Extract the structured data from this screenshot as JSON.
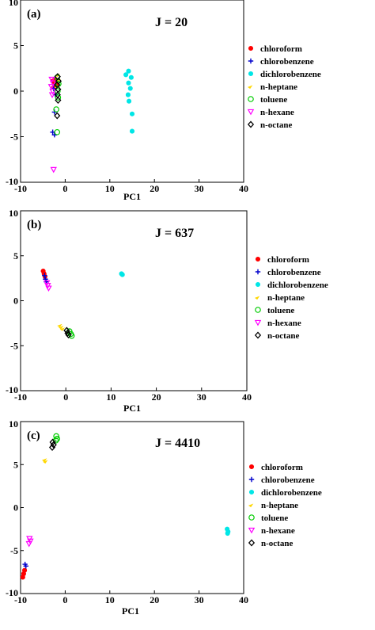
{
  "chart_data": [
    {
      "type": "scatter",
      "panel_label": "(a)",
      "annotation": "J = 20",
      "xlabel": "PC1",
      "ylabel": "",
      "xlim": [
        -10,
        40
      ],
      "ylim": [
        -10,
        10
      ],
      "xticks": [
        "-10",
        "0",
        "10",
        "20",
        "30",
        "40"
      ],
      "yticks": [
        "-10",
        "-5",
        "0",
        "5",
        "10"
      ],
      "legend_position": "right",
      "series": [
        {
          "name": "chloroform",
          "marker": "dot",
          "color": "#ff0000",
          "points": [
            [
              -2.3,
              1.3
            ],
            [
              -2.8,
              1.1
            ],
            [
              -2.5,
              0.9
            ],
            [
              -2.0,
              0.7
            ],
            [
              -2.6,
              0.4
            ]
          ]
        },
        {
          "name": "chlorobenzene",
          "marker": "plus",
          "color": "#0000cc",
          "points": [
            [
              -2.4,
              -2.3
            ],
            [
              -2.8,
              -4.5
            ],
            [
              -2.4,
              -4.8
            ],
            [
              -2.6,
              0.3
            ],
            [
              -2.2,
              -0.4
            ]
          ]
        },
        {
          "name": "dichlorobenzene",
          "marker": "dot",
          "color": "#00e6e6",
          "points": [
            [
              14.2,
              2.2
            ],
            [
              13.6,
              1.8
            ],
            [
              14.8,
              1.5
            ],
            [
              14.2,
              0.9
            ],
            [
              14.6,
              0.3
            ],
            [
              14.1,
              -0.4
            ],
            [
              14.3,
              -1.1
            ],
            [
              15.0,
              -2.5
            ],
            [
              15.0,
              -4.4
            ]
          ]
        },
        {
          "name": "n-heptane",
          "marker": "tri",
          "color": "#ffd700",
          "points": [
            [
              -1.6,
              1.8
            ],
            [
              -1.4,
              1.2
            ],
            [
              -1.7,
              0.5
            ]
          ]
        },
        {
          "name": "toluene",
          "marker": "circle",
          "color": "#00cc00",
          "points": [
            [
              -1.8,
              1.5
            ],
            [
              -1.5,
              0.8
            ],
            [
              -1.7,
              0.0
            ],
            [
              -1.6,
              -0.7
            ],
            [
              -2.0,
              -2.0
            ],
            [
              -1.8,
              -4.5
            ]
          ]
        },
        {
          "name": "n-hexane",
          "marker": "tridown",
          "color": "#ff00ff",
          "points": [
            [
              -3.0,
              1.3
            ],
            [
              -2.7,
              0.9
            ],
            [
              -3.1,
              0.5
            ],
            [
              -2.8,
              0.0
            ],
            [
              -2.9,
              -0.4
            ],
            [
              -2.6,
              -8.6
            ]
          ]
        },
        {
          "name": "n-octane",
          "marker": "diamond",
          "color": "#000000",
          "points": [
            [
              -1.7,
              1.6
            ],
            [
              -1.5,
              1.1
            ],
            [
              -1.8,
              0.7
            ],
            [
              -1.6,
              0.2
            ],
            [
              -1.7,
              -0.4
            ],
            [
              -1.6,
              -1.0
            ],
            [
              -1.8,
              -2.7
            ]
          ]
        }
      ]
    },
    {
      "type": "scatter",
      "panel_label": "(b)",
      "annotation": "J = 637",
      "xlabel": "PC1",
      "ylabel": "",
      "xlim": [
        -10,
        40
      ],
      "ylim": [
        -10,
        10
      ],
      "xticks": [
        "-10",
        "0",
        "10",
        "20",
        "30",
        "40"
      ],
      "yticks": [
        "-10",
        "-5",
        "0",
        "5",
        "10"
      ],
      "legend_position": "right",
      "series": [
        {
          "name": "chloroform",
          "marker": "dot",
          "color": "#ff0000",
          "points": [
            [
              -5.0,
              3.3
            ],
            [
              -4.8,
              3.0
            ],
            [
              -4.6,
              2.7
            ]
          ]
        },
        {
          "name": "chlorobenzene",
          "marker": "plus",
          "color": "#0000cc",
          "points": [
            [
              -4.7,
              2.8
            ],
            [
              -4.5,
              2.4
            ],
            [
              -4.3,
              2.1
            ]
          ]
        },
        {
          "name": "dichlorobenzene",
          "marker": "dot",
          "color": "#00e6e6",
          "points": [
            [
              12.3,
              3.0
            ],
            [
              12.5,
              2.9
            ]
          ]
        },
        {
          "name": "n-heptane",
          "marker": "tri",
          "color": "#ffd700",
          "points": [
            [
              -1.2,
              -2.7
            ],
            [
              -0.9,
              -2.9
            ],
            [
              -0.6,
              -3.1
            ]
          ]
        },
        {
          "name": "toluene",
          "marker": "circle",
          "color": "#00cc00",
          "points": [
            [
              0.8,
              -3.4
            ],
            [
              1.1,
              -3.7
            ],
            [
              1.3,
              -3.9
            ]
          ]
        },
        {
          "name": "n-hexane",
          "marker": "tridown",
          "color": "#ff00ff",
          "points": [
            [
              -4.2,
              2.0
            ],
            [
              -4.0,
              1.7
            ],
            [
              -3.8,
              1.4
            ]
          ]
        },
        {
          "name": "n-octane",
          "marker": "diamond",
          "color": "#000000",
          "points": [
            [
              0.2,
              -3.3
            ],
            [
              0.4,
              -3.6
            ],
            [
              0.6,
              -3.8
            ]
          ]
        }
      ]
    },
    {
      "type": "scatter",
      "panel_label": "(c)",
      "annotation": "J = 4410",
      "xlabel": "PC1",
      "ylabel": "",
      "xlim": [
        -10,
        40
      ],
      "ylim": [
        -10,
        10
      ],
      "xticks": [
        "-10",
        "0",
        "10",
        "20",
        "30",
        "40"
      ],
      "yticks": [
        "-10",
        "-5",
        "0",
        "5",
        "10"
      ],
      "legend_position": "right",
      "series": [
        {
          "name": "chloroform",
          "marker": "dot",
          "color": "#ff0000",
          "points": [
            [
              -9.1,
              -7.3
            ],
            [
              -9.3,
              -7.7
            ],
            [
              -9.5,
              -8.1
            ]
          ]
        },
        {
          "name": "chlorobenzene",
          "marker": "plus",
          "color": "#0000cc",
          "points": [
            [
              -9.0,
              -6.6
            ],
            [
              -8.8,
              -6.8
            ]
          ]
        },
        {
          "name": "dichlorobenzene",
          "marker": "dot",
          "color": "#00e6e6",
          "points": [
            [
              36.3,
              -2.5
            ],
            [
              36.5,
              -2.8
            ],
            [
              36.4,
              -3.0
            ]
          ]
        },
        {
          "name": "n-heptane",
          "marker": "tri",
          "color": "#ffd700",
          "points": [
            [
              -4.5,
              5.6
            ],
            [
              -4.3,
              5.4
            ]
          ]
        },
        {
          "name": "toluene",
          "marker": "circle",
          "color": "#00cc00",
          "points": [
            [
              -2.0,
              8.3
            ],
            [
              -1.8,
              8.0
            ],
            [
              -2.1,
              7.8
            ]
          ]
        },
        {
          "name": "n-hexane",
          "marker": "tridown",
          "color": "#ff00ff",
          "points": [
            [
              -8.0,
              -3.6
            ],
            [
              -7.8,
              -3.9
            ],
            [
              -8.1,
              -4.2
            ]
          ]
        },
        {
          "name": "n-octane",
          "marker": "diamond",
          "color": "#000000",
          "points": [
            [
              -2.8,
              7.6
            ],
            [
              -2.6,
              7.3
            ],
            [
              -2.9,
              7.0
            ]
          ]
        }
      ]
    }
  ]
}
